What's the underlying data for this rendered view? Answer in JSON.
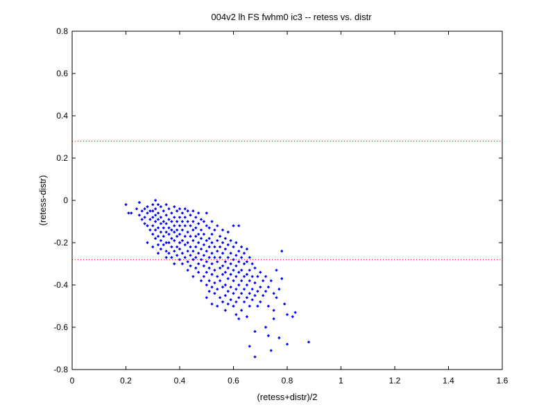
{
  "chart_data": {
    "type": "scatter",
    "title": "004v2 lh FS fwhm0 ic3 -- retess vs. distr",
    "xlabel": "(retess+distr)/2",
    "ylabel": "(retess-distr)",
    "xlim": [
      0,
      1.6
    ],
    "ylim": [
      -0.8,
      0.8
    ],
    "xticks": [
      0,
      0.2,
      0.4,
      0.6,
      0.8,
      1,
      1.2,
      1.4,
      1.6
    ],
    "yticks": [
      -0.8,
      -0.6,
      -0.4,
      -0.2,
      0,
      0.2,
      0.4,
      0.6,
      0.8
    ],
    "xtick_labels": [
      "0",
      "0.2",
      "0.4",
      "0.6",
      "0.8",
      "1",
      "1.2",
      "1.4",
      "1.6"
    ],
    "ytick_labels": [
      "-0.8",
      "-0.6",
      "-0.4",
      "-0.2",
      "0",
      "0.2",
      "0.4",
      "0.6",
      "0.8"
    ],
    "grid": false,
    "marker_color": "#0000ff",
    "reference_lines": [
      {
        "y": 0.28,
        "style": "dotted",
        "color": "#ff0000"
      },
      {
        "y": -0.28,
        "style": "dotted",
        "color": "#ff0000"
      }
    ],
    "points": [
      [
        0.2,
        -0.02
      ],
      [
        0.21,
        -0.06
      ],
      [
        0.22,
        -0.06
      ],
      [
        0.24,
        -0.04
      ],
      [
        0.25,
        -0.01
      ],
      [
        0.25,
        -0.07
      ],
      [
        0.26,
        -0.05
      ],
      [
        0.26,
        -0.09
      ],
      [
        0.27,
        -0.04
      ],
      [
        0.27,
        -0.08
      ],
      [
        0.27,
        -0.11
      ],
      [
        0.28,
        -0.03
      ],
      [
        0.28,
        -0.06
      ],
      [
        0.28,
        -0.12
      ],
      [
        0.28,
        -0.2
      ],
      [
        0.29,
        -0.05
      ],
      [
        0.29,
        -0.09
      ],
      [
        0.29,
        -0.14
      ],
      [
        0.3,
        -0.02
      ],
      [
        0.3,
        -0.05
      ],
      [
        0.3,
        -0.08
      ],
      [
        0.3,
        -0.12
      ],
      [
        0.3,
        -0.16
      ],
      [
        0.3,
        -0.22
      ],
      [
        0.31,
        0.0
      ],
      [
        0.31,
        -0.04
      ],
      [
        0.31,
        -0.07
      ],
      [
        0.31,
        -0.1
      ],
      [
        0.31,
        -0.14
      ],
      [
        0.31,
        -0.18
      ],
      [
        0.32,
        -0.02
      ],
      [
        0.32,
        -0.06
      ],
      [
        0.32,
        -0.09
      ],
      [
        0.32,
        -0.13
      ],
      [
        0.32,
        -0.17
      ],
      [
        0.32,
        -0.21
      ],
      [
        0.32,
        -0.25
      ],
      [
        0.33,
        -0.03
      ],
      [
        0.33,
        -0.08
      ],
      [
        0.33,
        -0.11
      ],
      [
        0.33,
        -0.15
      ],
      [
        0.33,
        -0.19
      ],
      [
        0.33,
        -0.23
      ],
      [
        0.34,
        -0.05
      ],
      [
        0.34,
        -0.1
      ],
      [
        0.34,
        -0.13
      ],
      [
        0.34,
        -0.17
      ],
      [
        0.34,
        -0.21
      ],
      [
        0.35,
        -0.02
      ],
      [
        0.35,
        -0.07
      ],
      [
        0.35,
        -0.11
      ],
      [
        0.35,
        -0.15
      ],
      [
        0.35,
        -0.2
      ],
      [
        0.35,
        -0.24
      ],
      [
        0.35,
        -0.27
      ],
      [
        0.36,
        -0.04
      ],
      [
        0.36,
        -0.09
      ],
      [
        0.36,
        -0.13
      ],
      [
        0.36,
        -0.16
      ],
      [
        0.36,
        -0.2
      ],
      [
        0.36,
        -0.25
      ],
      [
        0.37,
        -0.06
      ],
      [
        0.37,
        -0.1
      ],
      [
        0.37,
        -0.14
      ],
      [
        0.37,
        -0.18
      ],
      [
        0.37,
        -0.22
      ],
      [
        0.37,
        -0.27
      ],
      [
        0.38,
        -0.03
      ],
      [
        0.38,
        -0.08
      ],
      [
        0.38,
        -0.12
      ],
      [
        0.38,
        -0.15
      ],
      [
        0.38,
        -0.19
      ],
      [
        0.38,
        -0.24
      ],
      [
        0.38,
        -0.3
      ],
      [
        0.39,
        -0.05
      ],
      [
        0.39,
        -0.1
      ],
      [
        0.39,
        -0.14
      ],
      [
        0.39,
        -0.17
      ],
      [
        0.39,
        -0.22
      ],
      [
        0.39,
        -0.26
      ],
      [
        0.4,
        -0.04
      ],
      [
        0.4,
        -0.08
      ],
      [
        0.4,
        -0.12
      ],
      [
        0.4,
        -0.16
      ],
      [
        0.4,
        -0.2
      ],
      [
        0.4,
        -0.23
      ],
      [
        0.4,
        -0.28
      ],
      [
        0.41,
        -0.06
      ],
      [
        0.41,
        -0.1
      ],
      [
        0.41,
        -0.14
      ],
      [
        0.41,
        -0.19
      ],
      [
        0.41,
        -0.25
      ],
      [
        0.41,
        -0.3
      ],
      [
        0.42,
        -0.04
      ],
      [
        0.42,
        -0.08
      ],
      [
        0.42,
        -0.12
      ],
      [
        0.42,
        -0.17
      ],
      [
        0.42,
        -0.21
      ],
      [
        0.42,
        -0.27
      ],
      [
        0.43,
        -0.05
      ],
      [
        0.43,
        -0.1
      ],
      [
        0.43,
        -0.15
      ],
      [
        0.43,
        -0.2
      ],
      [
        0.43,
        -0.24
      ],
      [
        0.43,
        -0.29
      ],
      [
        0.43,
        -0.33
      ],
      [
        0.44,
        -0.07
      ],
      [
        0.44,
        -0.12
      ],
      [
        0.44,
        -0.17
      ],
      [
        0.44,
        -0.22
      ],
      [
        0.44,
        -0.26
      ],
      [
        0.44,
        -0.31
      ],
      [
        0.45,
        -0.05
      ],
      [
        0.45,
        -0.1
      ],
      [
        0.45,
        -0.14
      ],
      [
        0.45,
        -0.19
      ],
      [
        0.45,
        -0.24
      ],
      [
        0.45,
        -0.28
      ],
      [
        0.45,
        -0.36
      ],
      [
        0.46,
        -0.08
      ],
      [
        0.46,
        -0.13
      ],
      [
        0.46,
        -0.17
      ],
      [
        0.46,
        -0.22
      ],
      [
        0.46,
        -0.27
      ],
      [
        0.46,
        -0.32
      ],
      [
        0.47,
        -0.06
      ],
      [
        0.47,
        -0.11
      ],
      [
        0.47,
        -0.16
      ],
      [
        0.47,
        -0.2
      ],
      [
        0.47,
        -0.25
      ],
      [
        0.47,
        -0.3
      ],
      [
        0.47,
        -0.34
      ],
      [
        0.48,
        -0.09
      ],
      [
        0.48,
        -0.14
      ],
      [
        0.48,
        -0.18
      ],
      [
        0.48,
        -0.23
      ],
      [
        0.48,
        -0.28
      ],
      [
        0.48,
        -0.38
      ],
      [
        0.49,
        -0.1
      ],
      [
        0.49,
        -0.16
      ],
      [
        0.49,
        -0.21
      ],
      [
        0.49,
        -0.26
      ],
      [
        0.49,
        -0.31
      ],
      [
        0.49,
        -0.36
      ],
      [
        0.5,
        -0.06
      ],
      [
        0.5,
        -0.12
      ],
      [
        0.5,
        -0.19
      ],
      [
        0.5,
        -0.24
      ],
      [
        0.5,
        -0.29
      ],
      [
        0.5,
        -0.34
      ],
      [
        0.5,
        -0.4
      ],
      [
        0.5,
        -0.46
      ],
      [
        0.51,
        -0.13
      ],
      [
        0.51,
        -0.18
      ],
      [
        0.51,
        -0.22
      ],
      [
        0.51,
        -0.27
      ],
      [
        0.51,
        -0.32
      ],
      [
        0.51,
        -0.38
      ],
      [
        0.51,
        -0.43
      ],
      [
        0.52,
        -0.1
      ],
      [
        0.52,
        -0.16
      ],
      [
        0.52,
        -0.2
      ],
      [
        0.52,
        -0.25
      ],
      [
        0.52,
        -0.3
      ],
      [
        0.52,
        -0.35
      ],
      [
        0.52,
        -0.41
      ],
      [
        0.52,
        -0.49
      ],
      [
        0.53,
        -0.14
      ],
      [
        0.53,
        -0.22
      ],
      [
        0.53,
        -0.27
      ],
      [
        0.53,
        -0.33
      ],
      [
        0.53,
        -0.39
      ],
      [
        0.53,
        -0.44
      ],
      [
        0.54,
        -0.12
      ],
      [
        0.54,
        -0.19
      ],
      [
        0.54,
        -0.24
      ],
      [
        0.54,
        -0.29
      ],
      [
        0.54,
        -0.36
      ],
      [
        0.54,
        -0.42
      ],
      [
        0.54,
        -0.5
      ],
      [
        0.55,
        -0.17
      ],
      [
        0.55,
        -0.22
      ],
      [
        0.55,
        -0.27
      ],
      [
        0.55,
        -0.32
      ],
      [
        0.55,
        -0.38
      ],
      [
        0.55,
        -0.46
      ],
      [
        0.56,
        -0.14
      ],
      [
        0.56,
        -0.2
      ],
      [
        0.56,
        -0.25
      ],
      [
        0.56,
        -0.31
      ],
      [
        0.56,
        -0.35
      ],
      [
        0.56,
        -0.41
      ],
      [
        0.56,
        -0.48
      ],
      [
        0.57,
        -0.18
      ],
      [
        0.57,
        -0.23
      ],
      [
        0.57,
        -0.29
      ],
      [
        0.57,
        -0.34
      ],
      [
        0.57,
        -0.4
      ],
      [
        0.57,
        -0.45
      ],
      [
        0.57,
        -0.52
      ],
      [
        0.58,
        -0.15
      ],
      [
        0.58,
        -0.21
      ],
      [
        0.58,
        -0.27
      ],
      [
        0.58,
        -0.32
      ],
      [
        0.58,
        -0.37
      ],
      [
        0.58,
        -0.43
      ],
      [
        0.58,
        -0.49
      ],
      [
        0.59,
        -0.19
      ],
      [
        0.59,
        -0.25
      ],
      [
        0.59,
        -0.3
      ],
      [
        0.59,
        -0.35
      ],
      [
        0.59,
        -0.41
      ],
      [
        0.59,
        -0.47
      ],
      [
        0.6,
        -0.12
      ],
      [
        0.6,
        -0.22
      ],
      [
        0.6,
        -0.28
      ],
      [
        0.6,
        -0.33
      ],
      [
        0.6,
        -0.38
      ],
      [
        0.6,
        -0.44
      ],
      [
        0.6,
        -0.5
      ],
      [
        0.61,
        -0.2
      ],
      [
        0.61,
        -0.26
      ],
      [
        0.61,
        -0.31
      ],
      [
        0.61,
        -0.36
      ],
      [
        0.61,
        -0.42
      ],
      [
        0.61,
        -0.48
      ],
      [
        0.61,
        -0.54
      ],
      [
        0.62,
        -0.12
      ],
      [
        0.62,
        -0.24
      ],
      [
        0.62,
        -0.29
      ],
      [
        0.62,
        -0.34
      ],
      [
        0.62,
        -0.4
      ],
      [
        0.62,
        -0.46
      ],
      [
        0.62,
        -0.56
      ],
      [
        0.63,
        -0.22
      ],
      [
        0.63,
        -0.27
      ],
      [
        0.63,
        -0.33
      ],
      [
        0.63,
        -0.38
      ],
      [
        0.63,
        -0.44
      ],
      [
        0.63,
        -0.52
      ],
      [
        0.64,
        -0.25
      ],
      [
        0.64,
        -0.3
      ],
      [
        0.64,
        -0.36
      ],
      [
        0.64,
        -0.42
      ],
      [
        0.64,
        -0.48
      ],
      [
        0.65,
        -0.23
      ],
      [
        0.65,
        -0.29
      ],
      [
        0.65,
        -0.35
      ],
      [
        0.65,
        -0.4
      ],
      [
        0.65,
        -0.46
      ],
      [
        0.65,
        -0.55
      ],
      [
        0.66,
        -0.27
      ],
      [
        0.66,
        -0.33
      ],
      [
        0.66,
        -0.38
      ],
      [
        0.66,
        -0.44
      ],
      [
        0.66,
        -0.5
      ],
      [
        0.66,
        -0.69
      ],
      [
        0.67,
        -0.3
      ],
      [
        0.67,
        -0.36
      ],
      [
        0.67,
        -0.42
      ],
      [
        0.67,
        -0.47
      ],
      [
        0.68,
        -0.32
      ],
      [
        0.68,
        -0.39
      ],
      [
        0.68,
        -0.45
      ],
      [
        0.68,
        -0.62
      ],
      [
        0.68,
        -0.74
      ],
      [
        0.69,
        -0.36
      ],
      [
        0.69,
        -0.43
      ],
      [
        0.69,
        -0.5
      ],
      [
        0.7,
        -0.34
      ],
      [
        0.7,
        -0.41
      ],
      [
        0.7,
        -0.48
      ],
      [
        0.71,
        -0.38
      ],
      [
        0.71,
        -0.45
      ],
      [
        0.72,
        -0.36
      ],
      [
        0.72,
        -0.43
      ],
      [
        0.72,
        -0.6
      ],
      [
        0.73,
        -0.41
      ],
      [
        0.73,
        -0.5
      ],
      [
        0.73,
        -0.64
      ],
      [
        0.74,
        -0.38
      ],
      [
        0.74,
        -0.71
      ],
      [
        0.75,
        -0.44
      ],
      [
        0.75,
        -0.52
      ],
      [
        0.75,
        -0.56
      ],
      [
        0.76,
        -0.33
      ],
      [
        0.76,
        -0.46
      ],
      [
        0.77,
        -0.42
      ],
      [
        0.77,
        -0.65
      ],
      [
        0.78,
        -0.24
      ],
      [
        0.78,
        -0.37
      ],
      [
        0.79,
        -0.49
      ],
      [
        0.8,
        -0.54
      ],
      [
        0.8,
        -0.68
      ],
      [
        0.82,
        -0.55
      ],
      [
        0.83,
        -0.53
      ],
      [
        0.88,
        -0.67
      ]
    ]
  }
}
